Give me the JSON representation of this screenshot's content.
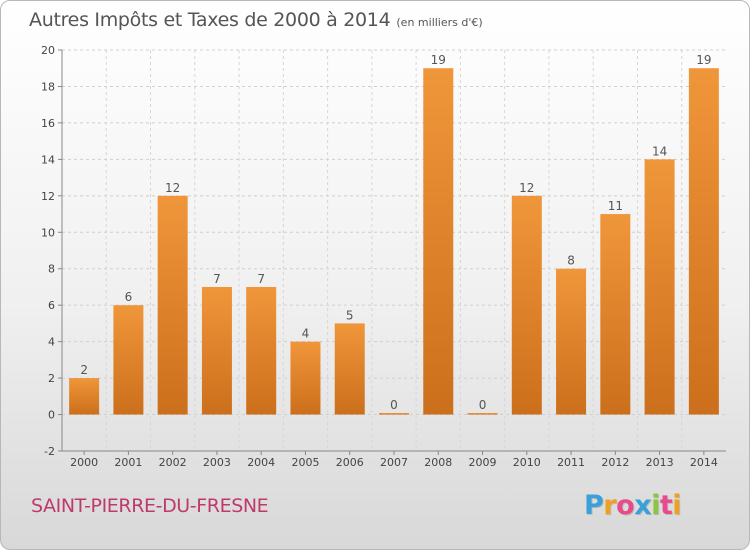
{
  "title": "Autres Impôts et Taxes de 2000 à 2014",
  "subtitle": "(en milliers d'€)",
  "location": "SAINT-PIERRE-DU-FRESNE",
  "logo": {
    "text": "Proxiti",
    "colors": [
      "#3aa0d8",
      "#f0a020",
      "#e84a8a",
      "#3aa0d8",
      "#8cc63f",
      "#e84a8a",
      "#f0a020"
    ]
  },
  "chart_data": {
    "type": "bar",
    "title": "Autres Impôts et Taxes de 2000 à 2014",
    "subtitle": "(en milliers d'€)",
    "xlabel": "",
    "ylabel": "",
    "categories": [
      "2000",
      "2001",
      "2002",
      "2003",
      "2004",
      "2005",
      "2006",
      "2007",
      "2008",
      "2009",
      "2010",
      "2011",
      "2012",
      "2013",
      "2014"
    ],
    "values": [
      2,
      6,
      12,
      7,
      7,
      4,
      5,
      0,
      19,
      0,
      12,
      8,
      11,
      14,
      19
    ],
    "data_labels": [
      "2",
      "6",
      "12",
      "7",
      "7",
      "4",
      "5",
      "0",
      "19",
      "0",
      "12",
      "8",
      "11",
      "14",
      "19"
    ],
    "ylim": [
      -2,
      20
    ],
    "yticks": [
      -2,
      0,
      2,
      4,
      6,
      8,
      10,
      12,
      14,
      16,
      18,
      20
    ],
    "ytick_labels": [
      "-2",
      "0",
      "2",
      "4",
      "6",
      "8",
      "10",
      "12",
      "14",
      "16",
      "18",
      "20"
    ],
    "grid": true,
    "bar_color": "#f0963a",
    "bar_color_dark": "#cc6f1c"
  }
}
